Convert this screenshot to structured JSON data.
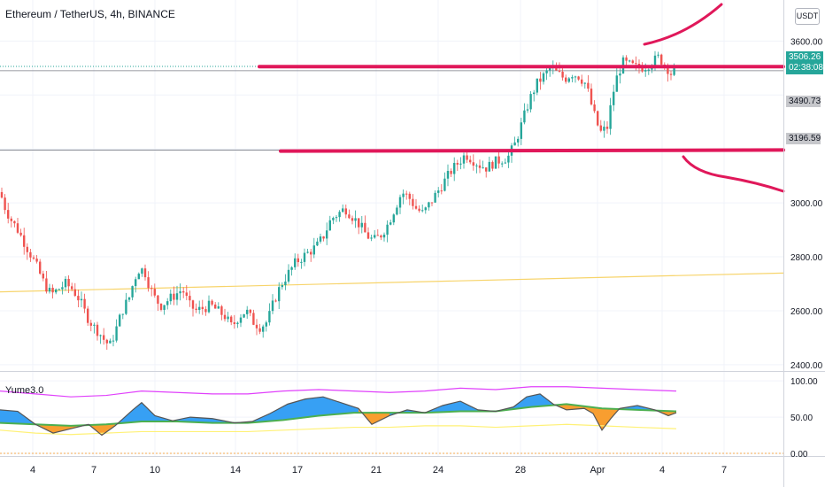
{
  "header": {
    "symbol_title": "Ethereum / TetherUS, 4h, BINANCE",
    "currency_button": "USDT"
  },
  "indicator": {
    "title": "Yume3.0"
  },
  "price_labels": {
    "last_price": "3506.26",
    "countdown": "02:38:08",
    "level_1": "3490.73",
    "level_2": "3196.59"
  },
  "colors": {
    "up": "#26a69a",
    "down": "#ef5350",
    "drawing": "#e0185a",
    "ma": "#f7d46b",
    "osc_green": "#4caf50",
    "osc_magenta": "#e040fb",
    "osc_yellow": "#fff176",
    "osc_orange": "#f7931a",
    "osc_blue": "#2196f3"
  },
  "chart_data": [
    {
      "type": "candlestick",
      "title": "Ethereum / TetherUS, 4h, BINANCE",
      "x_ticks": [
        "4",
        "7",
        "10",
        "14",
        "17",
        "21",
        "24",
        "28",
        "Apr",
        "4",
        "7"
      ],
      "y_ticks": [
        2400,
        2600,
        2800,
        3000,
        3200,
        3400,
        3600
      ],
      "y_tick_labels": [
        "2400.00",
        "2600.00",
        "2800.00",
        "3000.00",
        "3600.00"
      ],
      "ylim": [
        2380,
        3680
      ],
      "grid": true,
      "price_path": [
        [
          0,
          3040
        ],
        [
          6,
          2980
        ],
        [
          12,
          2940
        ],
        [
          20,
          2900
        ],
        [
          28,
          2850
        ],
        [
          36,
          2800
        ],
        [
          42,
          2760
        ],
        [
          50,
          2700
        ],
        [
          58,
          2660
        ],
        [
          66,
          2680
        ],
        [
          74,
          2700
        ],
        [
          82,
          2680
        ],
        [
          90,
          2640
        ],
        [
          98,
          2580
        ],
        [
          106,
          2540
        ],
        [
          112,
          2520
        ],
        [
          118,
          2490
        ],
        [
          124,
          2470
        ],
        [
          130,
          2520
        ],
        [
          138,
          2600
        ],
        [
          146,
          2650
        ],
        [
          152,
          2720
        ],
        [
          158,
          2760
        ],
        [
          164,
          2740
        ],
        [
          170,
          2680
        ],
        [
          176,
          2640
        ],
        [
          182,
          2620
        ],
        [
          190,
          2640
        ],
        [
          198,
          2660
        ],
        [
          206,
          2680
        ],
        [
          214,
          2620
        ],
        [
          222,
          2600
        ],
        [
          230,
          2610
        ],
        [
          238,
          2620
        ],
        [
          246,
          2600
        ],
        [
          254,
          2580
        ],
        [
          262,
          2540
        ],
        [
          270,
          2580
        ],
        [
          278,
          2600
        ],
        [
          286,
          2560
        ],
        [
          294,
          2540
        ],
        [
          302,
          2560
        ],
        [
          310,
          2640
        ],
        [
          318,
          2700
        ],
        [
          326,
          2740
        ],
        [
          334,
          2780
        ],
        [
          342,
          2800
        ],
        [
          350,
          2820
        ],
        [
          358,
          2840
        ],
        [
          366,
          2880
        ],
        [
          374,
          2940
        ],
        [
          382,
          2960
        ],
        [
          390,
          2980
        ],
        [
          398,
          2950
        ],
        [
          406,
          2920
        ],
        [
          414,
          2880
        ],
        [
          422,
          2860
        ],
        [
          430,
          2880
        ],
        [
          438,
          2920
        ],
        [
          446,
          2980
        ],
        [
          454,
          3040
        ],
        [
          462,
          3020
        ],
        [
          470,
          2980
        ],
        [
          478,
          2960
        ],
        [
          486,
          3000
        ],
        [
          494,
          3040
        ],
        [
          502,
          3080
        ],
        [
          510,
          3120
        ],
        [
          518,
          3150
        ],
        [
          526,
          3180
        ],
        [
          534,
          3160
        ],
        [
          542,
          3140
        ],
        [
          550,
          3130
        ],
        [
          558,
          3150
        ],
        [
          566,
          3160
        ],
        [
          574,
          3170
        ],
        [
          582,
          3220
        ],
        [
          590,
          3300
        ],
        [
          598,
          3380
        ],
        [
          606,
          3440
        ],
        [
          614,
          3470
        ],
        [
          622,
          3500
        ],
        [
          630,
          3480
        ],
        [
          638,
          3460
        ],
        [
          646,
          3480
        ],
        [
          654,
          3470
        ],
        [
          662,
          3440
        ],
        [
          670,
          3340
        ],
        [
          678,
          3260
        ],
        [
          686,
          3280
        ],
        [
          692,
          3400
        ],
        [
          698,
          3480
        ],
        [
          704,
          3520
        ],
        [
          712,
          3510
        ],
        [
          720,
          3500
        ],
        [
          728,
          3505
        ],
        [
          736,
          3520
        ],
        [
          744,
          3540
        ],
        [
          752,
          3510
        ],
        [
          758,
          3480
        ],
        [
          764,
          3506
        ]
      ]
    },
    {
      "type": "line",
      "title": "Yume3.0",
      "y_ticks": [
        0,
        50,
        100
      ],
      "y_tick_labels": [
        "0.00",
        "50.00",
        "100.00"
      ],
      "ylim": [
        0,
        110
      ],
      "series": [
        {
          "color": "#e040fb",
          "values": [
            [
              0,
              86
            ],
            [
              40,
              82
            ],
            [
              80,
              78
            ],
            [
              120,
              80
            ],
            [
              160,
              86
            ],
            [
              200,
              84
            ],
            [
              240,
              82
            ],
            [
              280,
              82
            ],
            [
              320,
              86
            ],
            [
              360,
              88
            ],
            [
              400,
              86
            ],
            [
              440,
              84
            ],
            [
              480,
              86
            ],
            [
              520,
              90
            ],
            [
              560,
              88
            ],
            [
              600,
              92
            ],
            [
              640,
              92
            ],
            [
              680,
              90
            ],
            [
              720,
              88
            ],
            [
              764,
              86
            ]
          ]
        },
        {
          "color": "#4caf50",
          "values": [
            [
              0,
              42
            ],
            [
              40,
              40
            ],
            [
              80,
              38
            ],
            [
              120,
              40
            ],
            [
              160,
              44
            ],
            [
              200,
              44
            ],
            [
              240,
              42
            ],
            [
              280,
              42
            ],
            [
              320,
              46
            ],
            [
              360,
              52
            ],
            [
              400,
              56
            ],
            [
              440,
              56
            ],
            [
              480,
              56
            ],
            [
              520,
              58
            ],
            [
              560,
              58
            ],
            [
              600,
              64
            ],
            [
              640,
              68
            ],
            [
              680,
              62
            ],
            [
              720,
              60
            ],
            [
              764,
              58
            ]
          ]
        },
        {
          "color": "#fff176",
          "values": [
            [
              0,
              32
            ],
            [
              40,
              28
            ],
            [
              80,
              26
            ],
            [
              120,
              28
            ],
            [
              160,
              30
            ],
            [
              200,
              30
            ],
            [
              240,
              30
            ],
            [
              280,
              30
            ],
            [
              320,
              32
            ],
            [
              360,
              34
            ],
            [
              400,
              36
            ],
            [
              440,
              36
            ],
            [
              480,
              38
            ],
            [
              520,
              38
            ],
            [
              560,
              36
            ],
            [
              600,
              38
            ],
            [
              640,
              40
            ],
            [
              680,
              38
            ],
            [
              720,
              36
            ],
            [
              764,
              34
            ]
          ]
        },
        {
          "color": "#555555",
          "values": [
            [
              0,
              60
            ],
            [
              20,
              58
            ],
            [
              40,
              40
            ],
            [
              60,
              28
            ],
            [
              80,
              34
            ],
            [
              100,
              40
            ],
            [
              115,
              25
            ],
            [
              130,
              38
            ],
            [
              150,
              60
            ],
            [
              160,
              70
            ],
            [
              175,
              52
            ],
            [
              195,
              45
            ],
            [
              215,
              50
            ],
            [
              240,
              48
            ],
            [
              265,
              42
            ],
            [
              285,
              44
            ],
            [
              305,
              55
            ],
            [
              325,
              68
            ],
            [
              345,
              75
            ],
            [
              365,
              78
            ],
            [
              385,
              70
            ],
            [
              405,
              62
            ],
            [
              420,
              40
            ],
            [
              440,
              52
            ],
            [
              460,
              60
            ],
            [
              480,
              56
            ],
            [
              500,
              66
            ],
            [
              520,
              72
            ],
            [
              540,
              60
            ],
            [
              560,
              58
            ],
            [
              580,
              64
            ],
            [
              595,
              78
            ],
            [
              610,
              82
            ],
            [
              625,
              68
            ],
            [
              640,
              60
            ],
            [
              660,
              62
            ],
            [
              670,
              55
            ],
            [
              680,
              32
            ],
            [
              690,
              48
            ],
            [
              700,
              62
            ],
            [
              720,
              66
            ],
            [
              740,
              60
            ],
            [
              755,
              52
            ],
            [
              764,
              56
            ]
          ]
        }
      ]
    }
  ]
}
